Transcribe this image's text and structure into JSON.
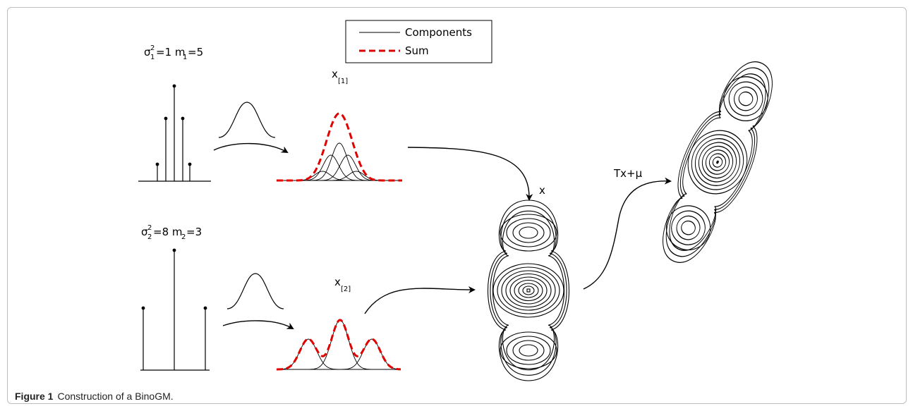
{
  "figure": {
    "label": "Figure 1",
    "caption": "Construction of a BinoGM."
  },
  "legend": {
    "components": "Components",
    "sum": "Sum"
  },
  "colors": {
    "sum": "#e00000",
    "line": "#000000"
  },
  "labels": {
    "top_params": "σ1²=1 m1=5",
    "bottom_params": "σ2²=8 m2=3",
    "x1": "x[1]",
    "x2": "x[2]",
    "x": "x",
    "transform": "Tx+μ"
  },
  "diagram_parts": {
    "stems_top": "binomial pmf stems (5 samples)",
    "stems_bottom": "binomial pmf stems (3 samples)",
    "kernel": "gaussian kernel",
    "contours": "contour plot of mixture",
    "transformed": "transformed contour plot"
  }
}
